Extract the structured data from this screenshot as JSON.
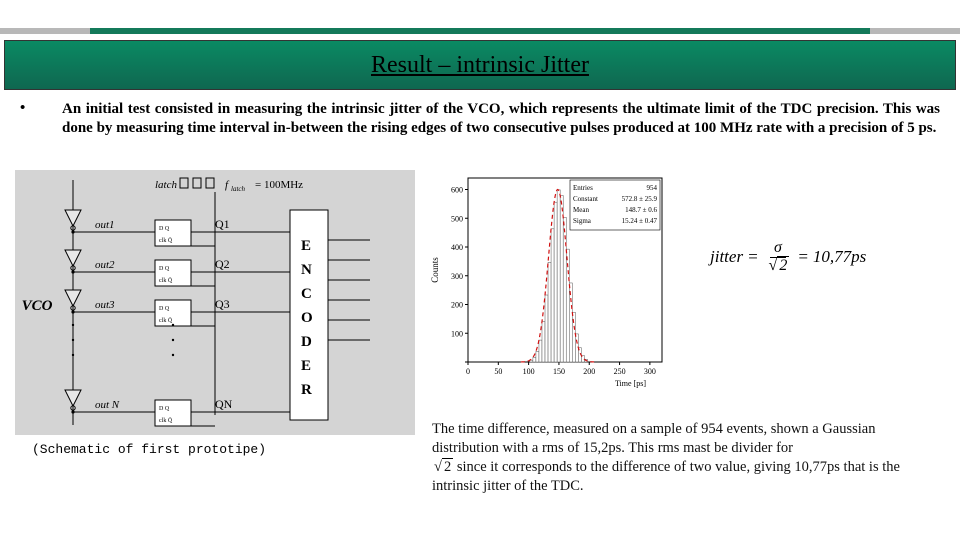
{
  "header": {
    "title": "Result – intrinsic Jitter",
    "top_bar_colors": {
      "side": "#b8b8b8",
      "mid": "#147a5a"
    },
    "band_gradient": [
      "#0a8a63",
      "#0f6750"
    ]
  },
  "bullet": {
    "text": "An initial test consisted in measuring the intrinsic jitter of the VCO, which represents the ultimate limit of the TDC precision. This was done by measuring time interval in-between the rising edges of two consecutive pulses produced at 100 MHz rate with a precision of 5 ps."
  },
  "schematic": {
    "type": "diagram",
    "background_color": "#d4d4d4",
    "vco_label": "VCO",
    "latch_label": "latch",
    "freq_label": "f_{latch} = 100MHz",
    "rows": [
      {
        "out": "out1",
        "q": "Q1"
      },
      {
        "out": "out2",
        "q": "Q2"
      },
      {
        "out": "out3",
        "q": "Q3"
      },
      {
        "out": "out N",
        "q": "QN"
      }
    ],
    "encoder_label": "ENCODER",
    "buffer_fill": "#e8e8e8",
    "line_color": "#000000"
  },
  "caption": "(Schematic of first prototipe)",
  "histogram": {
    "type": "histogram",
    "ylabel": "Counts",
    "xlabel": "Time [ps]",
    "xlim": [
      0,
      320
    ],
    "xtick_step": 50,
    "ylim": [
      0,
      640
    ],
    "ytick_step": 100,
    "peak_x": 148,
    "peak_y": 600,
    "sigma": 15.24,
    "bar_color": "#ffffff",
    "bar_border": "#555555",
    "fit_color": "#d01010",
    "fit_dash": "4 3",
    "axis_color": "#000000",
    "stats": {
      "Entries": "954",
      "Constant": "572.8 ± 25.9",
      "Mean": "148.7 ± 0.6",
      "Sigma": "15.24 ± 0.47"
    }
  },
  "equation": {
    "lhs": "jitter",
    "frac_num": "σ",
    "frac_den_sqrt": "2",
    "rhs": "10,77ps"
  },
  "result_paragraph": {
    "line1": "The time difference, measured on a sample of 954 events, shown a Gaussian distribution with a rms of 15,2ps. This rms mast be   divider for",
    "sqrt_val": "2",
    "line2": " since it corresponds to the difference of two value, giving   10,77ps that is the intrinsic jitter of the TDC."
  }
}
